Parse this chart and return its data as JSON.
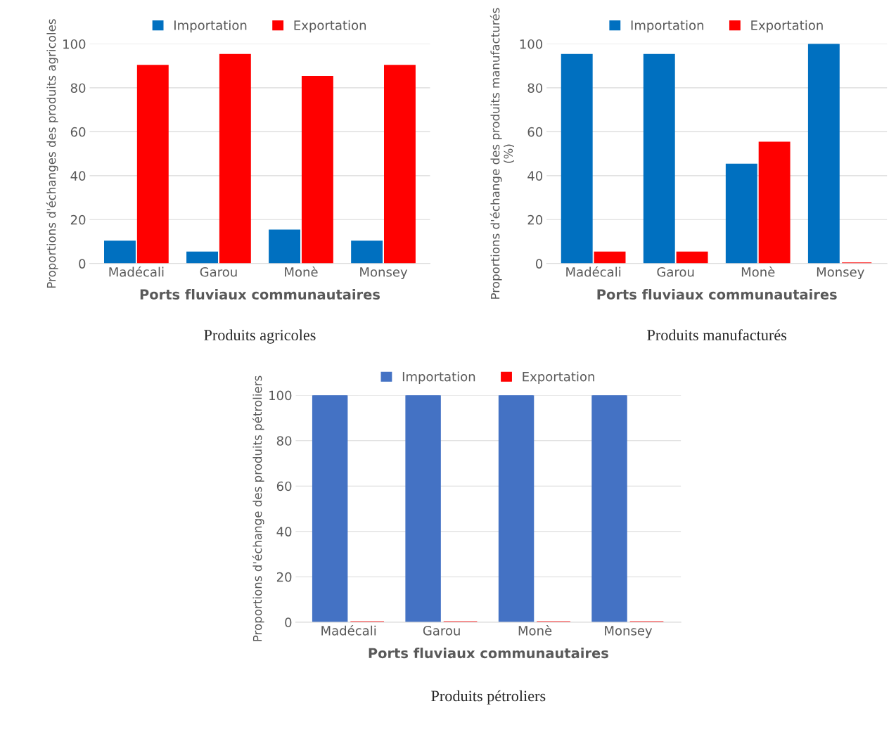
{
  "chart_data": [
    {
      "type": "bar",
      "xlabel": "Ports fluviaux communautaires",
      "ylabel": "Proportions d'échanges des produits agricoles",
      "categories": [
        "Madécali",
        "Garou",
        "Monè",
        "Monsey"
      ],
      "series": [
        {
          "name": "Importation",
          "color": "#0070c0",
          "values": [
            10,
            5,
            15,
            10
          ]
        },
        {
          "name": "Exportation",
          "color": "#ff0000",
          "values": [
            90,
            95,
            85,
            90
          ]
        }
      ],
      "ylim": [
        0,
        100
      ],
      "yticks": [
        0,
        20,
        40,
        60,
        80,
        100
      ],
      "grid": "y",
      "legend": "top",
      "annotations": [
        "Produits agricoles"
      ]
    },
    {
      "type": "bar",
      "xlabel": "Ports fluviaux communautaires",
      "ylabel": "Proportions d'échange des produits manufacturés (%)",
      "categories": [
        "Madécali",
        "Garou",
        "Monè",
        "Monsey"
      ],
      "series": [
        {
          "name": "Importation",
          "color": "#0070c0",
          "values": [
            95,
            95,
            45,
            100
          ]
        },
        {
          "name": "Exportation",
          "color": "#ff0000",
          "values": [
            5,
            5,
            55,
            0
          ]
        }
      ],
      "ylim": [
        0,
        100
      ],
      "yticks": [
        0,
        20,
        40,
        60,
        80,
        100
      ],
      "grid": "y",
      "legend": "top",
      "annotations": [
        "Produits manufacturés"
      ]
    },
    {
      "type": "bar",
      "xlabel": "Ports fluviaux communautaires",
      "ylabel": "Proportions d'échange des produits pétroliers",
      "categories": [
        "Madécali",
        "Garou",
        "Monè",
        "Monsey"
      ],
      "series": [
        {
          "name": "Importation",
          "color": "#4472c4",
          "values": [
            100,
            100,
            100,
            100
          ]
        },
        {
          "name": "Exportation",
          "color": "#ff0000",
          "values": [
            0,
            0,
            0,
            0
          ]
        }
      ],
      "ylim": [
        0,
        100
      ],
      "yticks": [
        0,
        20,
        40,
        60,
        80,
        100
      ],
      "grid": "y",
      "legend": "top",
      "annotations": [
        "Produits pétroliers"
      ]
    }
  ]
}
